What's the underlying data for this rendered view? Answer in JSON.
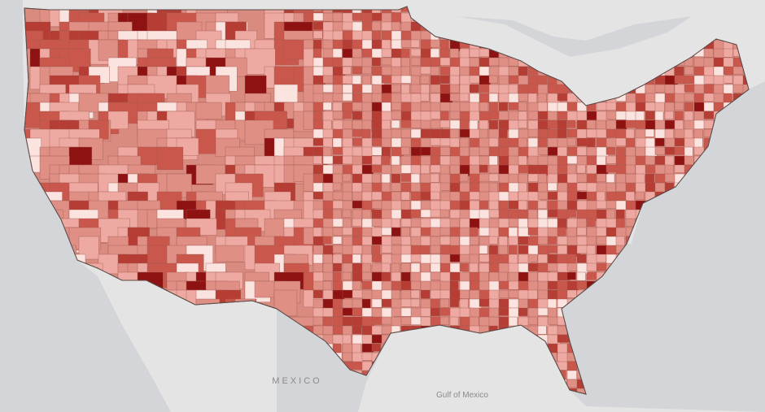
{
  "labels": {
    "mexico": "MEXICO",
    "gulf": "Gulf of Mexico"
  }
}
